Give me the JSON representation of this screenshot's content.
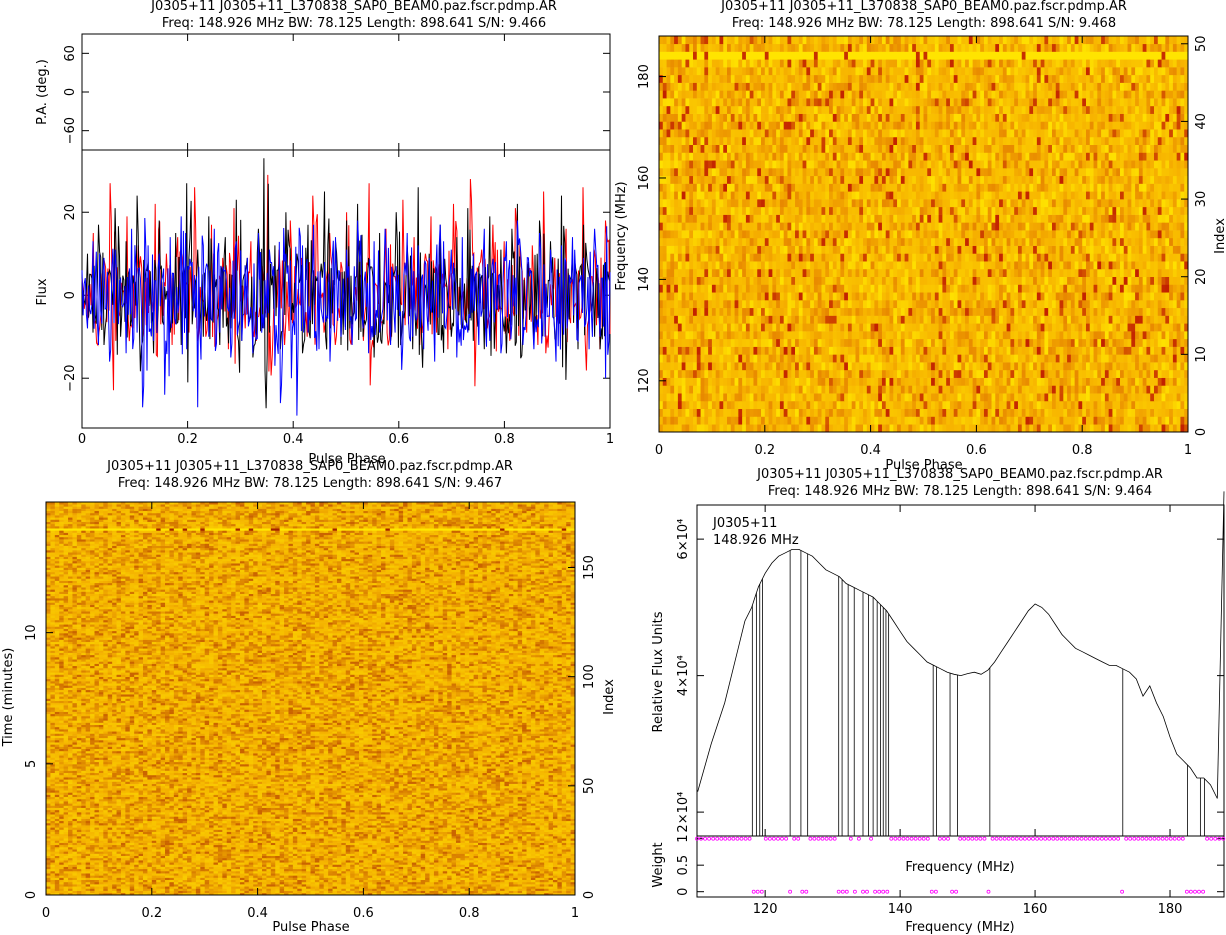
{
  "chart_data": [
    {
      "type": "line",
      "panel": "profile",
      "title_line1": "J0305+11  J0305+11_L370838_SAP0_BEAM0.paz.fscr.pdmp.AR",
      "title_line2": "Freq: 148.926 MHz BW: 78.125 Length: 898.641 S/N: 9.466",
      "pa_ylabel": "P.A. (deg.)",
      "pa_ylim": [
        -90,
        90
      ],
      "pa_ticks": [
        "60",
        "0",
        "−60"
      ],
      "pa_tick_values": [
        60,
        0,
        -60
      ],
      "ylabel": "Flux",
      "ylim": [
        -32,
        35
      ],
      "yticks": [
        "20",
        "0",
        "−20"
      ],
      "ytick_values": [
        20,
        0,
        -20
      ],
      "xlabel": "Pulse Phase",
      "xlim": [
        0,
        1
      ],
      "xticks": [
        "0",
        "0.2",
        "0.4",
        "0.6",
        "0.8",
        "1"
      ],
      "xtick_values": [
        0,
        0.2,
        0.4,
        0.6,
        0.8,
        1
      ],
      "series": [
        {
          "color": "#ff0000",
          "values": [
            4,
            -6,
            15,
            -9,
            8,
            27,
            -11,
            3,
            19,
            -8,
            12,
            -10,
            6,
            22,
            -7,
            10,
            -12,
            14,
            5,
            -9,
            26,
            2,
            -10,
            17,
            -6,
            9,
            -13,
            21,
            4,
            -8,
            13,
            -11,
            7,
            29,
            -6,
            11,
            -12,
            18,
            -3,
            9,
            -10,
            24,
            1,
            -9,
            15,
            -12,
            8,
            20,
            -5,
            12,
            -11,
            27,
            3,
            -8,
            16,
            -10,
            6,
            23,
            -7,
            14,
            -12,
            10,
            19,
            -9,
            5,
            -13,
            22,
            2,
            -6,
            28,
            -10,
            11,
            -8,
            17,
            -4,
            13,
            -11,
            21,
            7,
            -9,
            12,
            -12,
            25,
            -5,
            9,
            -10,
            16,
            4,
            -8,
            26,
            -6,
            11,
            -13,
            18
          ]
        },
        {
          "color": "#000000",
          "values": [
            -3,
            10,
            -9,
            17,
            -12,
            6,
            21,
            -10,
            13,
            -6,
            24,
            -11,
            8,
            -14,
            18,
            2,
            -9,
            15,
            -12,
            27,
            -7,
            11,
            -10,
            19,
            5,
            -12,
            14,
            -8,
            23,
            -11,
            9,
            -15,
            16,
            33,
            -9,
            12,
            -13,
            20,
            -6,
            10,
            -14,
            17,
            6,
            -11,
            25,
            -8,
            13,
            -12,
            18,
            -7,
            22,
            -10,
            9,
            -15,
            15,
            3,
            -11,
            20,
            -9,
            12,
            -13,
            26,
            -6,
            10,
            -12,
            17,
            4,
            -10,
            14,
            -8,
            21,
            -11,
            7,
            -13,
            19,
            -5,
            11,
            -14,
            16,
            22,
            -9,
            8,
            -12,
            18,
            -6,
            13,
            -11,
            24,
            -8,
            10,
            -13,
            17,
            5,
            -10,
            -13,
            8
          ]
        },
        {
          "color": "#0000ff",
          "values": [
            6,
            -8,
            13,
            -12,
            9,
            -16,
            11,
            4,
            -14,
            16,
            -9,
            -27,
            12,
            -11,
            10,
            -24,
            14,
            -7,
            19,
            -13,
            8,
            -27,
            12,
            -10,
            16,
            -9,
            6,
            -15,
            13,
            -11,
            9,
            -14,
            15,
            -8,
            11,
            -17,
            -26,
            10,
            -20,
            -29,
            12,
            -9,
            17,
            -13,
            8,
            -16,
            14,
            -10,
            11,
            -12,
            18,
            -8,
            -14,
            13,
            -9,
            16,
            -12,
            7,
            -18,
            15,
            -10,
            12,
            -13,
            9,
            -16,
            17,
            -8,
            11,
            -15,
            14,
            -9,
            10,
            -12,
            16,
            -11,
            8,
            -14,
            13,
            -7,
            18,
            -12,
            9,
            -13,
            15,
            -10,
            11,
            -16,
            12,
            -8,
            14,
            -11,
            9,
            -13,
            16,
            -10,
            -20
          ]
        }
      ]
    },
    {
      "type": "heatmap",
      "panel": "phase-frequency",
      "title_line1": "J0305+11  J0305+11_L370838_SAP0_BEAM0.paz.fscr.pdmp.AR",
      "title_line2": "Freq: 148.926 MHz BW: 78.125 Length: 898.641 S/N: 9.468",
      "xlabel": "Pulse Phase",
      "ylabel": "Frequency (MHz)",
      "y2label": "Index",
      "xlim": [
        0,
        1
      ],
      "ylim": [
        109.9,
        188.0
      ],
      "y2lim": [
        0,
        51
      ],
      "xticks": [
        "0",
        "0.2",
        "0.4",
        "0.6",
        "0.8",
        "1"
      ],
      "xtick_values": [
        0,
        0.2,
        0.4,
        0.6,
        0.8,
        1
      ],
      "yticks": [
        "120",
        "140",
        "160",
        "180"
      ],
      "ytick_values": [
        120,
        140,
        160,
        180
      ],
      "y2ticks": [
        "0",
        "10",
        "20",
        "30",
        "40",
        "50"
      ],
      "y2tick_values": [
        0,
        10,
        20,
        30,
        40,
        50
      ],
      "rows": 51,
      "bright_row_index": 48,
      "colors": {
        "low": "#ffe600",
        "mid": "#f7b300",
        "high": "#c22000"
      }
    },
    {
      "type": "heatmap",
      "panel": "phase-time",
      "title_line1": "J0305+11  J0305+11_L370838_SAP0_BEAM0.paz.fscr.pdmp.AR",
      "title_line2": "Freq: 148.926 MHz BW: 78.125 Length: 898.641 S/N: 9.467",
      "xlabel": "Pulse Phase",
      "ylabel": "Time (minutes)",
      "y2label": "Index",
      "xlim": [
        0,
        1
      ],
      "ylim": [
        0,
        14.98
      ],
      "y2lim": [
        0,
        180
      ],
      "xticks": [
        "0",
        "0.2",
        "0.4",
        "0.6",
        "0.8",
        "1"
      ],
      "xtick_values": [
        0,
        0.2,
        0.4,
        0.6,
        0.8,
        1
      ],
      "yticks": [
        "0",
        "5",
        "10"
      ],
      "ytick_values": [
        0,
        5,
        10
      ],
      "y2ticks": [
        "0",
        "50",
        "100",
        "150"
      ],
      "y2tick_values": [
        0,
        50,
        100,
        150
      ],
      "bright_row_index": 167,
      "colors": {
        "low": "#ffe600",
        "mid": "#f4b000",
        "high": "#a01800"
      }
    },
    {
      "type": "line",
      "panel": "bandpass",
      "title_line1": "J0305+11  J0305+11_L370838_SAP0_BEAM0.paz.fscr.pdmp.AR",
      "title_line2": "Freq: 148.926 MHz BW: 78.125 Length: 898.641 S/N: 9.464",
      "annotation_line1": "J0305+11",
      "annotation_line2": "148.926 MHz",
      "ylabel": "Relative Flux Units",
      "xlabel_inner": "Frequency (MHz)",
      "xlabel": "Frequency (MHz)",
      "weight_label": "Weight",
      "xlim": [
        109.9,
        188.0
      ],
      "ylim": [
        16500,
        65000
      ],
      "xticks": [
        "120",
        "140",
        "160",
        "180"
      ],
      "xtick_values": [
        120,
        140,
        160,
        180
      ],
      "yticks": [
        "2×10⁴",
        "4×10⁴",
        "6×10⁴"
      ],
      "ytick_values": [
        20000,
        40000,
        60000
      ],
      "weight_ylim": [
        -0.1,
        1.05
      ],
      "weight_ticks": [
        "0",
        "0.5",
        "1"
      ],
      "weight_tick_values": [
        0,
        0.5,
        1
      ],
      "x": [
        110,
        112,
        114,
        116,
        117,
        118,
        118.5,
        119,
        120,
        121,
        122,
        123,
        124,
        125,
        126,
        127,
        128,
        129,
        130,
        131,
        132,
        133,
        134,
        135,
        136,
        137,
        138,
        139,
        140,
        141,
        142,
        143,
        144,
        145,
        146,
        147,
        148,
        149,
        150,
        151,
        152,
        153,
        154,
        155,
        156,
        157,
        158,
        159,
        160,
        161,
        162,
        163,
        164,
        165,
        166,
        167,
        168,
        169,
        170,
        171,
        172,
        173,
        174,
        175,
        176,
        177,
        178,
        179,
        180,
        181,
        182,
        183,
        184,
        185,
        186,
        187,
        188
      ],
      "y": [
        23000,
        30000,
        36000,
        44000,
        48000,
        50000,
        51500,
        53000,
        55000,
        56500,
        57500,
        58000,
        58500,
        58500,
        58000,
        57500,
        56500,
        55500,
        55000,
        54500,
        53500,
        53000,
        52500,
        52000,
        51500,
        50500,
        49500,
        48000,
        46500,
        45000,
        44000,
        43000,
        42000,
        41500,
        41000,
        40500,
        40200,
        40000,
        40300,
        40500,
        40200,
        40800,
        42000,
        43500,
        45000,
        46500,
        48000,
        49500,
        50500,
        50000,
        49000,
        47500,
        46000,
        45000,
        44000,
        43500,
        43000,
        42500,
        42000,
        41500,
        41500,
        41000,
        40500,
        39500,
        37000,
        38500,
        36000,
        34000,
        31000,
        28500,
        27500,
        26500,
        25000,
        25000,
        24000,
        22000,
        67000
      ],
      "flagged_channels": [
        118.1,
        118.7,
        119.2,
        119.6,
        123.7,
        125.3,
        126.3,
        130.9,
        131.4,
        132.3,
        133.2,
        134.5,
        135.3,
        136.0,
        136.6,
        137.1,
        137.5,
        137.9,
        138.3,
        144.9,
        145.4,
        147.4,
        148.5,
        153.3,
        173.0,
        182.6,
        184.5,
        185.1
      ],
      "flagged_weights_row": [
        118.1,
        118.7,
        119.2,
        119.6,
        123.7,
        125.3,
        126.3,
        130.9,
        131.4,
        132.3,
        133.2,
        134.5,
        135.3,
        136.0,
        136.6,
        137.1,
        137.5,
        137.9,
        138.3,
        144.9,
        145.4,
        147.4,
        148.5,
        153.3,
        173.0,
        182.6,
        183.1,
        183.6,
        184.1,
        184.5,
        185.1
      ],
      "weight_color": "#ff00ff"
    }
  ]
}
